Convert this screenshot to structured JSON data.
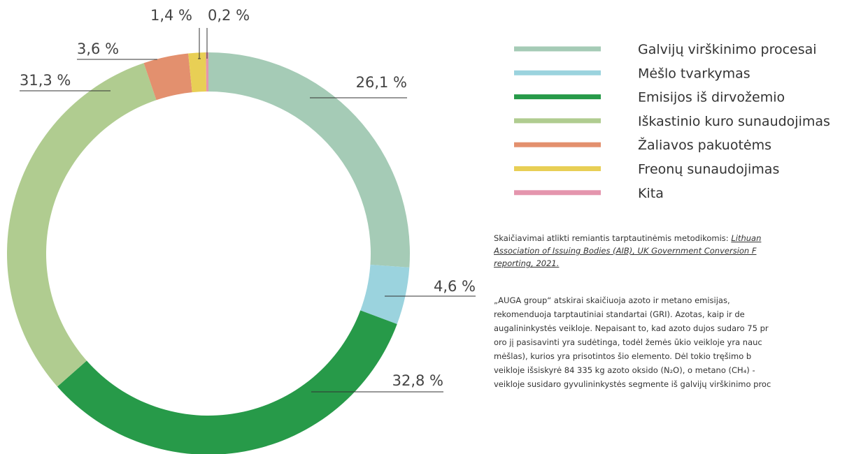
{
  "chart_data": {
    "type": "donut",
    "categories": [
      "Galvijų virškinimo procesai",
      "Mėšlo tvarkymas",
      "Emisijos iš dirvožemio",
      "Iškastinio kuro sunaudojimas",
      "Žaliavos pakuotėms",
      "Freonų sunaudojimas",
      "Kita"
    ],
    "values": [
      26.1,
      4.6,
      32.8,
      31.3,
      3.6,
      1.4,
      0.2
    ],
    "value_labels": [
      "26,1 %",
      "4,6 %",
      "32,8 %",
      "31,3 %",
      "3,6 %",
      "1,4 %",
      "0,2 %"
    ],
    "colors": [
      "#a5cbb6",
      "#9bd3de",
      "#279a49",
      "#b0cc90",
      "#e3906e",
      "#e8cf55",
      "#e495ad"
    ]
  },
  "note": {
    "lines": [
      "Skaičiavimai atlikti remiantis tarptautinėmis metodikomis: ",
      "Association of Issuing Bodies (AIB), UK Government Conversion F",
      "reporting, 2021."
    ],
    "link_start": "Lithuan"
  },
  "paragraph": [
    "„AUGA group“ atskirai skaičiuoja azoto ir metano emisijas,",
    "rekomenduoja tarptautiniai standartai (GRI). Azotas, kaip ir de",
    "augalininkystės veikloje. Nepaisant to, kad azoto dujos sudaro 75 pr",
    "oro jį pasisavinti yra sudėtinga, todėl žemės ūkio veikloje yra nauc",
    "mėšlas), kurios yra prisotintos šio elemento. Dėl tokio tręšimo b",
    "veikloje išsiskyrė 84 335 kg azoto oksido (N₂O), o metano (CH₄) -",
    "veikloje susidaro gyvulininkystės segmente iš galvijų virškinimo proc"
  ]
}
